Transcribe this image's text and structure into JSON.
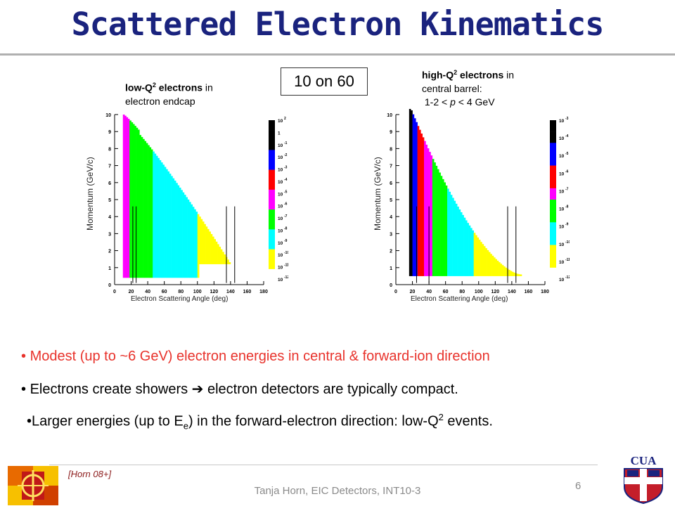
{
  "title": "Scattered Electron Kinematics",
  "tag": "10 on 60",
  "left_note": {
    "bold": "low-Q",
    "sup": "2",
    "bold2": " electrons",
    "rest1": " in",
    "rest2": "electron endcap"
  },
  "right_note": {
    "bold": "high-Q",
    "sup": "2",
    "bold2": " electrons",
    "rest1": " in",
    "rest2": "central barrel:",
    "rest3": "1-2 < ",
    "p": "p",
    "rest4": " < 4 GeV"
  },
  "plots": {
    "y_title": "Momentum (GeV/c)",
    "x_title": "Electron Scattering Angle (deg)",
    "x_ticks": [
      "0",
      "20",
      "40",
      "60",
      "80",
      "100",
      "120",
      "140",
      "160",
      "180"
    ],
    "y_ticks": [
      "0",
      "1",
      "2",
      "3",
      "4",
      "5",
      "6",
      "7",
      "8",
      "9",
      "10"
    ],
    "left_scale": [
      "10",
      "1",
      "10",
      "10",
      "10",
      "10",
      "10",
      "10",
      "10",
      "10",
      "10",
      "10",
      "10",
      "10"
    ],
    "left_scale_exp": [
      "2",
      "",
      "-1",
      "-2",
      "-3",
      "-4",
      "-5",
      "-6",
      "-7",
      "-8",
      "-9",
      "-10",
      "-11",
      "-12"
    ],
    "right_scale_exp": [
      "-3",
      "-4",
      "-5",
      "-6",
      "-7",
      "-8",
      "-9",
      "-10",
      "-11",
      "-12"
    ]
  },
  "chart_data": [
    {
      "type": "heatmap",
      "xlabel": "Electron Scattering Angle (deg)",
      "ylabel": "Momentum (GeV/c)",
      "xlim": [
        0,
        180
      ],
      "ylim": [
        0,
        10
      ],
      "color_scale": {
        "min_exp": -12,
        "max_exp": 2,
        "log": true
      }
    },
    {
      "type": "heatmap",
      "xlabel": "Electron Scattering Angle (deg)",
      "ylabel": "Momentum (GeV/c)",
      "xlim": [
        0,
        180
      ],
      "ylim": [
        0,
        10
      ],
      "color_scale": {
        "min_exp": -12,
        "max_exp": -3,
        "log": true
      }
    }
  ],
  "bullets": {
    "b1": "Modest (up to ~6 GeV) electron energies in central & forward-ion direction",
    "b2a": "Electrons create showers ",
    "b2arrow": "➔",
    "b2b": " electron detectors are typically compact.",
    "b3a": "Larger energies (up to E",
    "b3sub": "e",
    "b3b": ") in the forward-electron direction: low-Q",
    "b3sup": "2",
    "b3c": " events."
  },
  "cite": "[Horn 08+]",
  "footer": "Tanja Horn, EIC Detectors, INT10-3",
  "page_number": "6",
  "logo_right_text": "CUA",
  "colors": {
    "title": "#1a237e",
    "red": "#e8322b",
    "yellow": "#ffff00",
    "cyan": "#00ffff",
    "green": "#00ff00",
    "magenta": "#ff00ff",
    "redband": "#ff0000",
    "blue": "#0000ff",
    "black": "#000000"
  }
}
